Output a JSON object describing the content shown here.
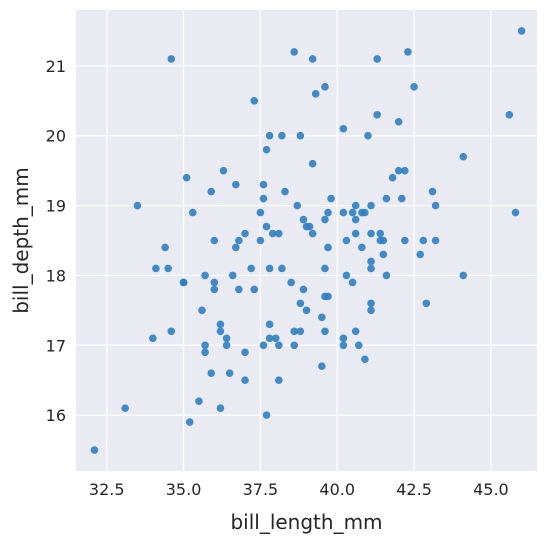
{
  "chart_data": {
    "type": "scatter",
    "title": "",
    "xlabel": "bill_length_mm",
    "ylabel": "bill_depth_mm",
    "xlim": [
      31.5,
      46.5
    ],
    "ylim": [
      15.2,
      21.8
    ],
    "xticks": [
      32.5,
      35.0,
      37.5,
      40.0,
      42.5,
      45.0
    ],
    "xtick_labels": [
      "32.5",
      "35.0",
      "37.5",
      "40.0",
      "42.5",
      "45.0"
    ],
    "yticks": [
      16,
      17,
      18,
      19,
      20,
      21
    ],
    "ytick_labels": [
      "16",
      "17",
      "18",
      "19",
      "20",
      "21"
    ],
    "grid": true,
    "colors": {
      "background": "#eaeaf2",
      "grid": "#ffffff",
      "point": "#2f7fc1"
    },
    "points": [
      [
        32.1,
        15.5
      ],
      [
        33.1,
        16.1
      ],
      [
        33.5,
        19.0
      ],
      [
        34.0,
        17.1
      ],
      [
        34.1,
        18.1
      ],
      [
        34.4,
        18.4
      ],
      [
        34.5,
        18.1
      ],
      [
        34.6,
        17.2
      ],
      [
        34.6,
        21.1
      ],
      [
        35.0,
        17.9
      ],
      [
        35.0,
        17.9
      ],
      [
        35.1,
        19.4
      ],
      [
        35.2,
        15.9
      ],
      [
        35.3,
        18.9
      ],
      [
        35.5,
        16.2
      ],
      [
        35.6,
        17.5
      ],
      [
        35.7,
        17.0
      ],
      [
        35.7,
        16.9
      ],
      [
        35.7,
        18.0
      ],
      [
        35.9,
        16.6
      ],
      [
        35.9,
        19.2
      ],
      [
        36.0,
        17.9
      ],
      [
        36.0,
        17.8
      ],
      [
        36.0,
        18.5
      ],
      [
        36.2,
        17.2
      ],
      [
        36.2,
        17.3
      ],
      [
        36.2,
        16.1
      ],
      [
        36.3,
        19.5
      ],
      [
        36.4,
        17.1
      ],
      [
        36.4,
        17.0
      ],
      [
        36.5,
        16.6
      ],
      [
        36.6,
        18.0
      ],
      [
        36.7,
        18.4
      ],
      [
        36.7,
        19.3
      ],
      [
        36.8,
        18.5
      ],
      [
        36.8,
        17.8
      ],
      [
        37.0,
        18.6
      ],
      [
        37.0,
        16.9
      ],
      [
        37.0,
        16.5
      ],
      [
        37.2,
        18.1
      ],
      [
        37.3,
        17.8
      ],
      [
        37.3,
        20.5
      ],
      [
        37.5,
        18.5
      ],
      [
        37.5,
        18.9
      ],
      [
        37.6,
        17.0
      ],
      [
        37.6,
        19.3
      ],
      [
        37.6,
        19.1
      ],
      [
        37.7,
        16.0
      ],
      [
        37.7,
        18.7
      ],
      [
        37.7,
        19.8
      ],
      [
        37.8,
        17.1
      ],
      [
        37.8,
        17.3
      ],
      [
        37.8,
        18.1
      ],
      [
        37.8,
        20.0
      ],
      [
        37.9,
        18.6
      ],
      [
        38.0,
        17.1
      ],
      [
        38.1,
        18.6
      ],
      [
        38.1,
        17.0
      ],
      [
        38.1,
        16.5
      ],
      [
        38.2,
        18.1
      ],
      [
        38.2,
        20.0
      ],
      [
        38.3,
        19.2
      ],
      [
        38.5,
        17.9
      ],
      [
        38.6,
        17.2
      ],
      [
        38.6,
        21.2
      ],
      [
        38.6,
        17.0
      ],
      [
        38.7,
        19.0
      ],
      [
        38.8,
        17.2
      ],
      [
        38.8,
        20.0
      ],
      [
        38.8,
        17.6
      ],
      [
        38.9,
        17.8
      ],
      [
        38.9,
        18.8
      ],
      [
        39.0,
        17.5
      ],
      [
        39.0,
        18.7
      ],
      [
        39.1,
        18.7
      ],
      [
        39.2,
        19.6
      ],
      [
        39.2,
        18.6
      ],
      [
        39.2,
        21.1
      ],
      [
        39.3,
        20.6
      ],
      [
        39.5,
        17.4
      ],
      [
        39.5,
        16.7
      ],
      [
        39.6,
        17.2
      ],
      [
        39.6,
        18.1
      ],
      [
        39.6,
        17.7
      ],
      [
        39.6,
        18.8
      ],
      [
        39.6,
        20.7
      ],
      [
        39.7,
        17.7
      ],
      [
        39.7,
        18.4
      ],
      [
        39.7,
        18.9
      ],
      [
        39.8,
        19.1
      ],
      [
        40.2,
        17.1
      ],
      [
        40.2,
        17.0
      ],
      [
        40.2,
        18.9
      ],
      [
        40.2,
        20.1
      ],
      [
        40.3,
        18.0
      ],
      [
        40.3,
        18.5
      ],
      [
        40.5,
        17.9
      ],
      [
        40.5,
        18.9
      ],
      [
        40.6,
        17.2
      ],
      [
        40.6,
        18.6
      ],
      [
        40.6,
        18.8
      ],
      [
        40.6,
        19.0
      ],
      [
        40.7,
        17.0
      ],
      [
        40.8,
        18.4
      ],
      [
        40.8,
        18.9
      ],
      [
        40.9,
        16.8
      ],
      [
        40.9,
        18.9
      ],
      [
        41.0,
        20.0
      ],
      [
        41.1,
        17.5
      ],
      [
        41.1,
        17.6
      ],
      [
        41.1,
        18.2
      ],
      [
        41.1,
        18.6
      ],
      [
        41.1,
        19.0
      ],
      [
        41.1,
        18.1
      ],
      [
        41.3,
        20.3
      ],
      [
        41.3,
        21.1
      ],
      [
        41.4,
        18.5
      ],
      [
        41.4,
        18.6
      ],
      [
        41.5,
        18.3
      ],
      [
        41.5,
        18.5
      ],
      [
        41.6,
        18.0
      ],
      [
        41.6,
        19.1
      ],
      [
        41.8,
        19.4
      ],
      [
        42.0,
        20.2
      ],
      [
        42.0,
        19.5
      ],
      [
        42.1,
        19.1
      ],
      [
        42.2,
        18.5
      ],
      [
        42.2,
        19.5
      ],
      [
        42.3,
        21.2
      ],
      [
        42.5,
        20.7
      ],
      [
        42.7,
        18.3
      ],
      [
        42.8,
        18.5
      ],
      [
        42.9,
        17.6
      ],
      [
        43.1,
        19.2
      ],
      [
        43.2,
        18.5
      ],
      [
        43.2,
        19.0
      ],
      [
        44.1,
        18.0
      ],
      [
        44.1,
        19.7
      ],
      [
        45.6,
        20.3
      ],
      [
        45.8,
        18.9
      ],
      [
        46.0,
        21.5
      ]
    ]
  }
}
